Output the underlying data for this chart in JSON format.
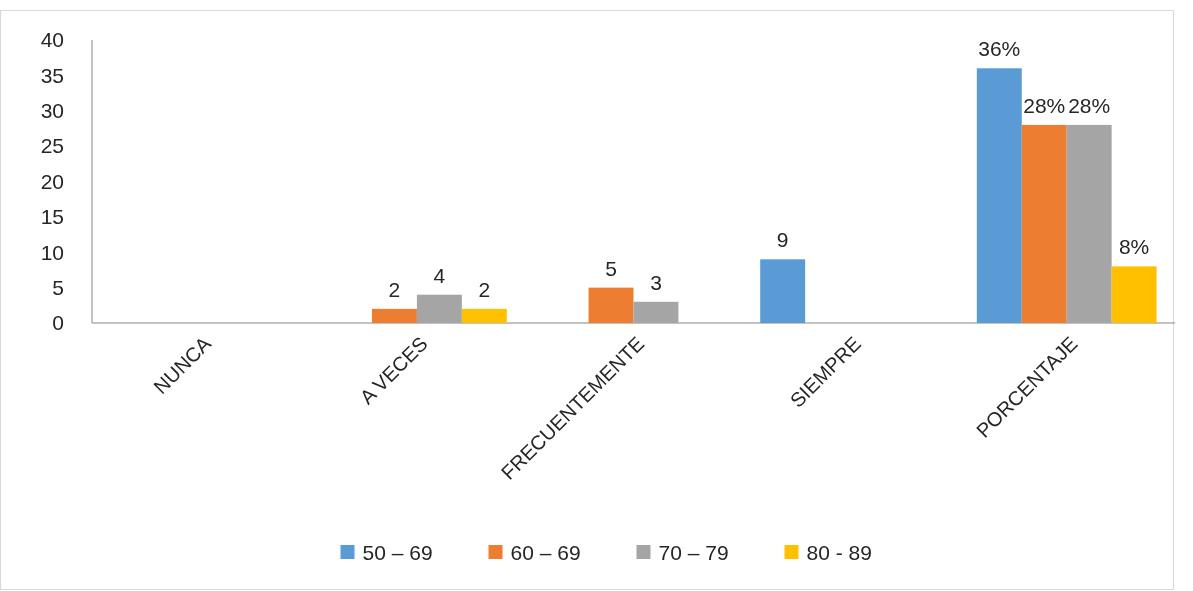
{
  "chart_data": {
    "type": "bar",
    "categories": [
      "NUNCA",
      "A VECES",
      "FRECUENTEMENTE",
      "SIEMPRE",
      "PORCENTAJE"
    ],
    "series": [
      {
        "name": "50 – 69",
        "color": "#5b9bd5",
        "values": [
          null,
          null,
          null,
          9,
          36
        ],
        "value_labels": [
          null,
          null,
          null,
          "9",
          "36%"
        ]
      },
      {
        "name": "60 – 69",
        "color": "#ed7d31",
        "values": [
          null,
          2,
          5,
          null,
          28
        ],
        "value_labels": [
          null,
          "2",
          "5",
          null,
          "28%"
        ]
      },
      {
        "name": "70 – 79",
        "color": "#a5a5a5",
        "values": [
          null,
          4,
          3,
          null,
          28
        ],
        "value_labels": [
          null,
          "4",
          "3",
          null,
          "28%"
        ]
      },
      {
        "name": "80 - 89",
        "color": "#ffc000",
        "values": [
          null,
          2,
          null,
          null,
          8
        ],
        "value_labels": [
          null,
          "2",
          null,
          null,
          "8%"
        ]
      }
    ],
    "ylim": [
      0,
      40
    ],
    "yticks": [
      0,
      5,
      10,
      15,
      20,
      25,
      30,
      35,
      40
    ],
    "grid": false,
    "legend": "bottom"
  }
}
